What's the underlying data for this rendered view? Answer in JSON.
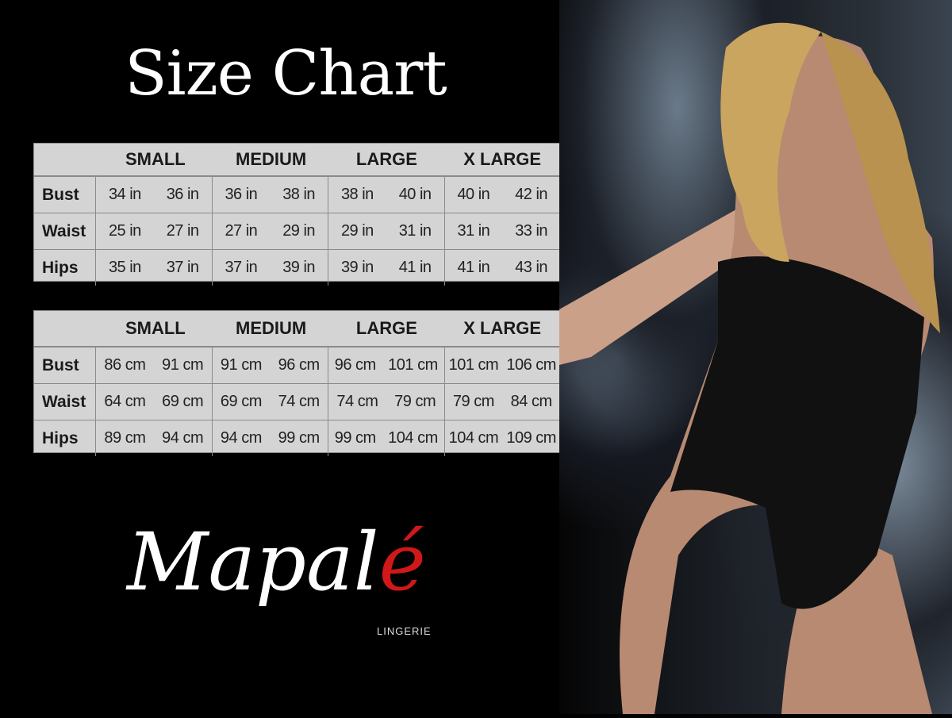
{
  "title": "Size Chart",
  "sizes": [
    "SMALL",
    "MEDIUM",
    "LARGE",
    "X LARGE"
  ],
  "inches_table": {
    "rows": [
      {
        "label": "Bust",
        "values": [
          "34 in",
          "36 in",
          "36 in",
          "38 in",
          "38 in",
          "40 in",
          "40 in",
          "42 in"
        ]
      },
      {
        "label": "Waist",
        "values": [
          "25 in",
          "27 in",
          "27 in",
          "29 in",
          "29 in",
          "31 in",
          "31 in",
          "33 in"
        ]
      },
      {
        "label": "Hips",
        "values": [
          "35 in",
          "37 in",
          "37 in",
          "39 in",
          "39 in",
          "41 in",
          "41 in",
          "43 in"
        ]
      }
    ]
  },
  "cm_table": {
    "rows": [
      {
        "label": "Bust",
        "values": [
          "86 cm",
          "91 cm",
          "91 cm",
          "96 cm",
          "96 cm",
          "101 cm",
          "101 cm",
          "106 cm"
        ]
      },
      {
        "label": "Waist",
        "values": [
          "64 cm",
          "69 cm",
          "69 cm",
          "74 cm",
          "74 cm",
          "79 cm",
          "79 cm",
          "84 cm"
        ]
      },
      {
        "label": "Hips",
        "values": [
          "89 cm",
          "94 cm",
          "94 cm",
          "99 cm",
          "99 cm",
          "104 cm",
          "104 cm",
          "109 cm"
        ]
      }
    ]
  },
  "logo": {
    "brand": "Mapalé",
    "brand_main": "Mapal",
    "brand_accent": "é",
    "subtitle": "LINGERIE",
    "accent_color": "#d01818"
  },
  "colors": {
    "background": "#000000",
    "table_bg": "#d4d4d4",
    "table_border": "#8a8a8a"
  }
}
